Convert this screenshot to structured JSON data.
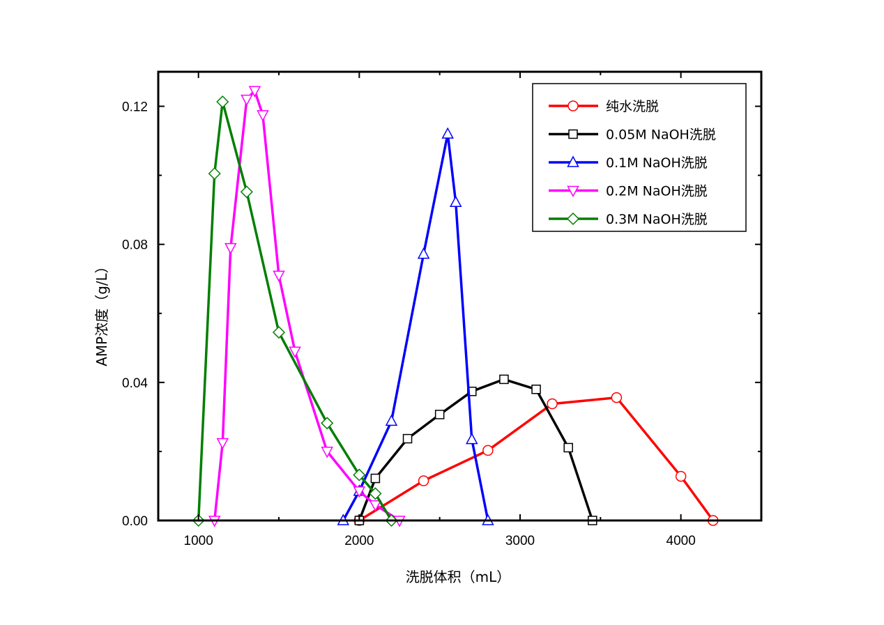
{
  "chart_data": {
    "type": "line",
    "xlabel": "洗脱体积（mL）",
    "ylabel": "AMP浓度（g/L）",
    "xlim": [
      750,
      4500
    ],
    "ylim": [
      0,
      0.13
    ],
    "xticks": [
      1000,
      2000,
      3000,
      4000
    ],
    "xtick_labels": [
      "1000",
      "2000",
      "3000",
      "4000"
    ],
    "yticks": [
      0,
      0.04,
      0.08,
      0.12
    ],
    "ytick_labels": [
      "0.00",
      "0.04",
      "0.08",
      "0.12"
    ],
    "grid": false,
    "legend_position": "top-right",
    "series": [
      {
        "name": "纯水洗脱",
        "color": "#ff0000",
        "marker": "circle",
        "x": [
          2000,
          2400,
          2800,
          3200,
          3600,
          4000,
          4200
        ],
        "y": [
          0,
          0.0115,
          0.0203,
          0.0338,
          0.0356,
          0.0128,
          0
        ]
      },
      {
        "name": "0.05M NaOH洗脱",
        "color": "#000000",
        "marker": "square",
        "x": [
          2000,
          2100,
          2300,
          2500,
          2700,
          2900,
          3100,
          3300,
          3450
        ],
        "y": [
          0,
          0.0122,
          0.0237,
          0.0307,
          0.0374,
          0.0409,
          0.038,
          0.0211,
          0
        ]
      },
      {
        "name": "0.1M NaOH洗脱",
        "color": "#0000ff",
        "marker": "triangle-up",
        "x": [
          1900,
          2000,
          2200,
          2400,
          2550,
          2600,
          2700,
          2800
        ],
        "y": [
          0,
          0.0085,
          0.0288,
          0.0772,
          0.112,
          0.0922,
          0.0235,
          0
        ]
      },
      {
        "name": "0.2M NaOH洗脱",
        "color": "#ff00ff",
        "marker": "triangle-down",
        "x": [
          1100,
          1150,
          1200,
          1300,
          1350,
          1400,
          1500,
          1600,
          1800,
          2000,
          2100,
          2250
        ],
        "y": [
          0,
          0.0225,
          0.079,
          0.122,
          0.1245,
          0.1175,
          0.071,
          0.049,
          0.02,
          0.0085,
          0.0045,
          0
        ]
      },
      {
        "name": "0.3M NaOH洗脱",
        "color": "#007f00",
        "marker": "diamond",
        "x": [
          1000,
          1100,
          1150,
          1300,
          1500,
          1800,
          2000,
          2100,
          2200
        ],
        "y": [
          0,
          0.1005,
          0.1213,
          0.0952,
          0.0545,
          0.0282,
          0.0132,
          0.0078,
          0
        ]
      }
    ]
  }
}
